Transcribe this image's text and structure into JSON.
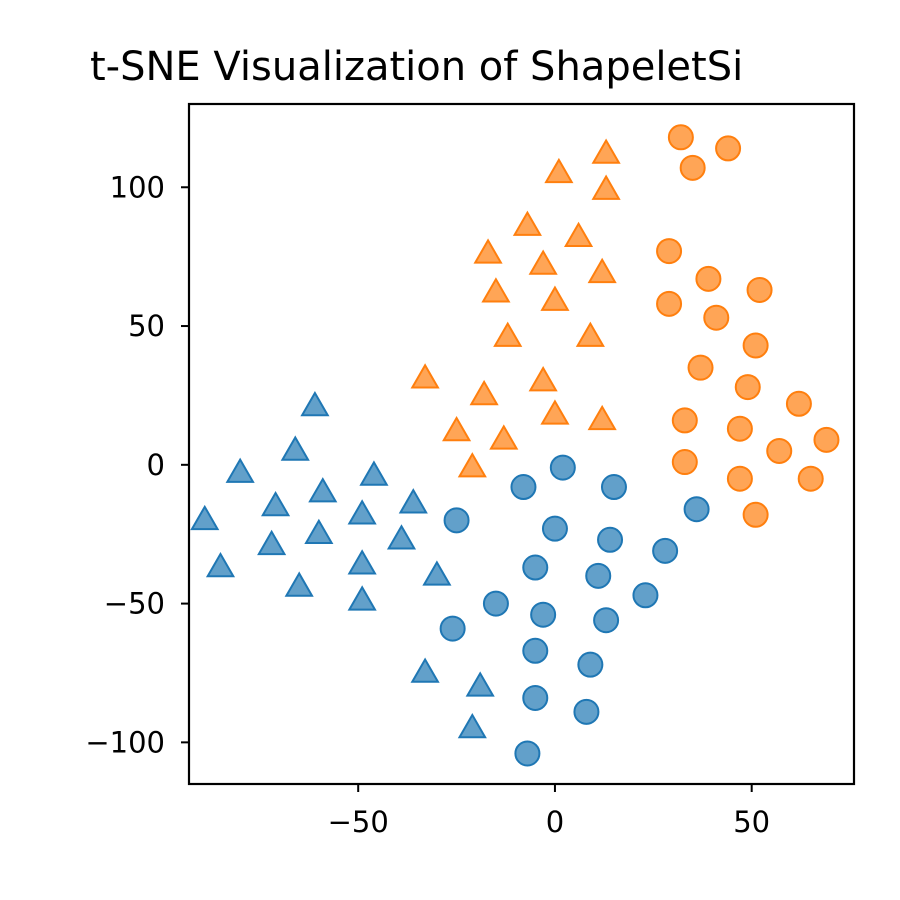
{
  "chart_data": {
    "type": "scatter",
    "title": "t-SNE Visualization of ShapeletSi",
    "xlabel": "",
    "ylabel": "",
    "xlim": [
      -93,
      76
    ],
    "ylim": [
      -115,
      130
    ],
    "xticks": [
      -50,
      0,
      50
    ],
    "yticks": [
      100,
      50,
      0,
      -50,
      -100
    ],
    "xtick_labels": [
      "−50",
      "0",
      "50"
    ],
    "ytick_labels": [
      "100",
      "50",
      "0",
      "−50",
      "−100"
    ],
    "grid": false,
    "legend": "none",
    "series": [
      {
        "color": "#1f77b4",
        "marker": "triangle",
        "points": [
          [
            -61,
            21
          ],
          [
            -66,
            5
          ],
          [
            -80,
            -3
          ],
          [
            -46,
            -4
          ],
          [
            -89,
            -20
          ],
          [
            -71,
            -15
          ],
          [
            -59,
            -10
          ],
          [
            -49,
            -18
          ],
          [
            -36,
            -14
          ],
          [
            -60,
            -25
          ],
          [
            -72,
            -29
          ],
          [
            -39,
            -27
          ],
          [
            -85,
            -37
          ],
          [
            -49,
            -36
          ],
          [
            -30,
            -40
          ],
          [
            -65,
            -44
          ],
          [
            -49,
            -49
          ],
          [
            -33,
            -75
          ],
          [
            -19,
            -80
          ],
          [
            -21,
            -95
          ]
        ]
      },
      {
        "color": "#1f77b4",
        "marker": "circle",
        "points": [
          [
            2,
            -1
          ],
          [
            -8,
            -8
          ],
          [
            15,
            -8
          ],
          [
            -25,
            -20
          ],
          [
            0,
            -23
          ],
          [
            14,
            -27
          ],
          [
            28,
            -31
          ],
          [
            36,
            -16
          ],
          [
            -5,
            -37
          ],
          [
            11,
            -40
          ],
          [
            23,
            -47
          ],
          [
            -15,
            -50
          ],
          [
            -3,
            -54
          ],
          [
            13,
            -56
          ],
          [
            -26,
            -59
          ],
          [
            -5,
            -67
          ],
          [
            9,
            -72
          ],
          [
            -5,
            -84
          ],
          [
            8,
            -89
          ],
          [
            -7,
            -104
          ]
        ]
      },
      {
        "color": "#ff7f0e",
        "marker": "triangle",
        "points": [
          [
            13,
            112
          ],
          [
            1,
            105
          ],
          [
            13,
            99
          ],
          [
            -7,
            86
          ],
          [
            6,
            82
          ],
          [
            -17,
            76
          ],
          [
            -3,
            72
          ],
          [
            12,
            69
          ],
          [
            -15,
            62
          ],
          [
            0,
            59
          ],
          [
            -12,
            46
          ],
          [
            9,
            46
          ],
          [
            -33,
            31
          ],
          [
            -3,
            30
          ],
          [
            -18,
            25
          ],
          [
            0,
            18
          ],
          [
            12,
            16
          ],
          [
            -25,
            12
          ],
          [
            -13,
            9
          ],
          [
            -21,
            -1
          ]
        ]
      },
      {
        "color": "#ff7f0e",
        "marker": "circle",
        "points": [
          [
            32,
            118
          ],
          [
            44,
            114
          ],
          [
            35,
            107
          ],
          [
            29,
            77
          ],
          [
            39,
            67
          ],
          [
            52,
            63
          ],
          [
            29,
            58
          ],
          [
            41,
            53
          ],
          [
            51,
            43
          ],
          [
            37,
            35
          ],
          [
            49,
            28
          ],
          [
            62,
            22
          ],
          [
            33,
            16
          ],
          [
            47,
            13
          ],
          [
            69,
            9
          ],
          [
            57,
            5
          ],
          [
            33,
            1
          ],
          [
            47,
            -5
          ],
          [
            65,
            -5
          ],
          [
            51,
            -18
          ]
        ]
      }
    ]
  }
}
